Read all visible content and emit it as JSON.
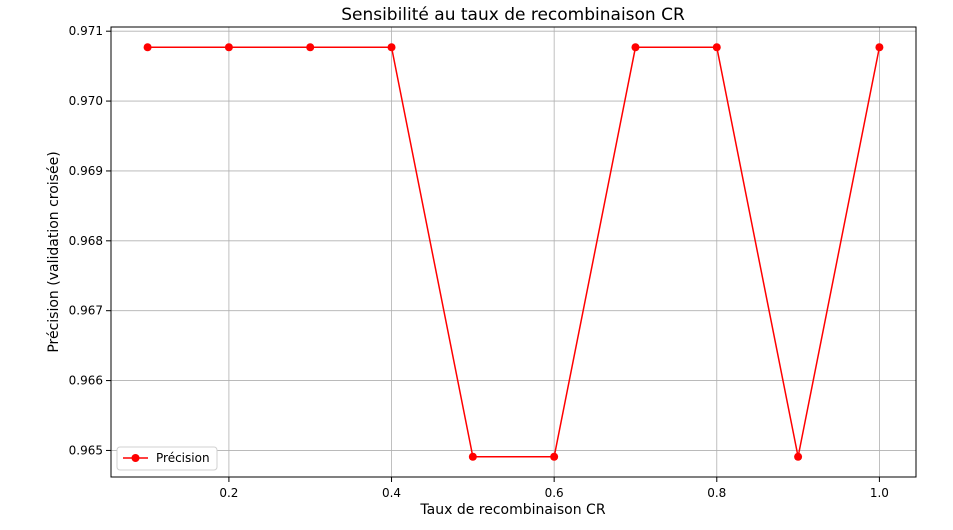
{
  "chart_data": {
    "type": "line",
    "title": "Sensibilité au taux de recombinaison CR",
    "xlabel": "Taux de recombinaison CR",
    "ylabel": "Précision (validation croisée)",
    "x": [
      0.1,
      0.2,
      0.3,
      0.4,
      0.5,
      0.6,
      0.7,
      0.8,
      0.9,
      1.0
    ],
    "series": [
      {
        "name": "Précision",
        "color": "#ff0000",
        "marker": "circle",
        "values": [
          0.97077,
          0.97077,
          0.97077,
          0.97077,
          0.96491,
          0.96491,
          0.97077,
          0.97077,
          0.96491,
          0.97077
        ]
      }
    ],
    "xlim": [
      0.055,
      1.045
    ],
    "ylim": [
      0.96462,
      0.97106
    ],
    "xticks": [
      0.2,
      0.4,
      0.6,
      0.8,
      1.0
    ],
    "xtick_labels": [
      "0.2",
      "0.4",
      "0.6",
      "0.8",
      "1.0"
    ],
    "yticks": [
      0.965,
      0.966,
      0.967,
      0.968,
      0.969,
      0.97,
      0.971
    ],
    "ytick_labels": [
      "0.965",
      "0.966",
      "0.967",
      "0.968",
      "0.969",
      "0.970",
      "0.971"
    ],
    "grid": true,
    "legend_position": "lower-left"
  }
}
